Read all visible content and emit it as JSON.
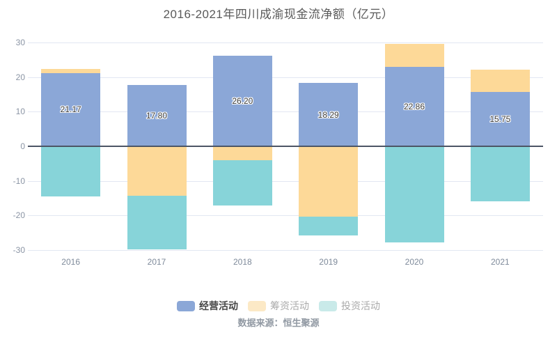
{
  "header": {
    "title": "2016-2021年四川成渝现金流净额（亿元）"
  },
  "chart_data": {
    "type": "bar",
    "stacked": true,
    "title": "2016-2021年四川成渝现金流净额（亿元）",
    "categories": [
      "2016",
      "2017",
      "2018",
      "2019",
      "2020",
      "2021"
    ],
    "series": [
      {
        "name": "经营活动",
        "color": "#8ba7d7",
        "values": [
          21.17,
          17.8,
          26.2,
          18.29,
          22.86,
          15.75
        ],
        "labels": [
          "21.17",
          "17.80",
          "26.20",
          "18.29",
          "22.86",
          "15.75"
        ],
        "labeled": true
      },
      {
        "name": "筹资活动",
        "color": "#fdd998",
        "values": [
          1.2,
          -14.2,
          -4.1,
          -20.3,
          6.8,
          6.3
        ],
        "labeled": false
      },
      {
        "name": "投资活动",
        "color": "#87d4d9",
        "values": [
          -14.4,
          -15.5,
          -13.0,
          -5.5,
          -27.8,
          -15.8
        ],
        "labeled": false
      }
    ],
    "ylabel": "",
    "xlabel": "",
    "ylim": [
      -30,
      30
    ],
    "ytick_interval": 10,
    "yticks": [
      "30",
      "20",
      "10",
      "0",
      "-10",
      "-20",
      "-30"
    ],
    "grid": true,
    "legend_position": "bottom"
  },
  "legend": {
    "items": [
      {
        "label": "经营活动",
        "marker_color": "#8ba7d7",
        "active": true
      },
      {
        "label": "筹资活动",
        "marker_color": "#fce9c6",
        "active": false
      },
      {
        "label": "投资活动",
        "marker_color": "#c9eae9",
        "active": false
      }
    ]
  },
  "footer": {
    "source": "数据来源：恒生聚源"
  }
}
